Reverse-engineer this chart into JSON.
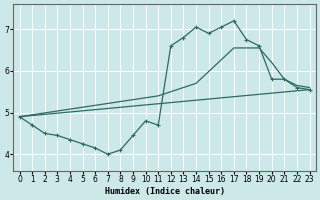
{
  "xlabel": "Humidex (Indice chaleur)",
  "background_color": "#cce8e8",
  "grid_color": "#ffffff",
  "line_color": "#2e6b5e",
  "xlim": [
    -0.5,
    23.5
  ],
  "ylim": [
    3.6,
    7.6
  ],
  "yticks": [
    4,
    5,
    6,
    7
  ],
  "xticks": [
    0,
    1,
    2,
    3,
    4,
    5,
    6,
    7,
    8,
    9,
    10,
    11,
    12,
    13,
    14,
    15,
    16,
    17,
    18,
    19,
    20,
    21,
    22,
    23
  ],
  "series_zigzag": [
    [
      0,
      4.9
    ],
    [
      1,
      4.7
    ],
    [
      2,
      4.5
    ],
    [
      3,
      4.45
    ],
    [
      4,
      4.35
    ],
    [
      5,
      4.25
    ],
    [
      6,
      4.15
    ],
    [
      7,
      4.0
    ],
    [
      8,
      4.1
    ],
    [
      9,
      4.45
    ],
    [
      10,
      4.8
    ],
    [
      11,
      4.7
    ],
    [
      12,
      6.6
    ],
    [
      13,
      6.8
    ],
    [
      14,
      7.05
    ],
    [
      15,
      6.9
    ],
    [
      16,
      7.05
    ],
    [
      17,
      7.2
    ],
    [
      18,
      6.75
    ],
    [
      19,
      6.6
    ],
    [
      20,
      5.8
    ],
    [
      21,
      5.8
    ],
    [
      22,
      5.6
    ],
    [
      23,
      5.55
    ]
  ],
  "series_upper": [
    [
      0,
      4.9
    ],
    [
      11,
      5.4
    ],
    [
      14,
      5.7
    ],
    [
      17,
      6.55
    ],
    [
      19,
      6.55
    ],
    [
      20,
      6.2
    ],
    [
      21,
      5.8
    ],
    [
      22,
      5.65
    ],
    [
      23,
      5.6
    ]
  ],
  "series_lower": [
    [
      0,
      4.9
    ],
    [
      23,
      5.55
    ]
  ]
}
